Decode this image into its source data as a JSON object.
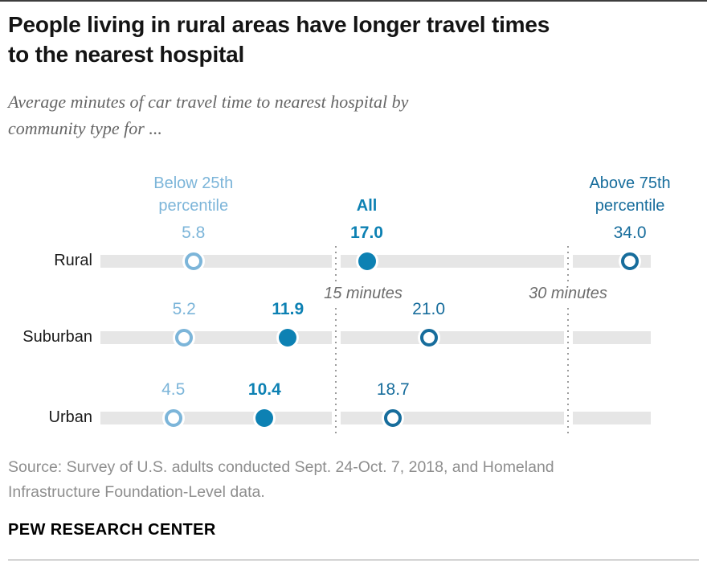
{
  "header": {
    "title": "People living in rural areas have longer travel times\nto the nearest hospital",
    "subtitle": "Average minutes of car travel time to nearest hospital by\ncommunity type for ..."
  },
  "chart_data": {
    "type": "scatter",
    "variant": "dot-plot",
    "title": "People living in rural areas have longer travel times to the nearest hospital",
    "subtitle": "Average minutes of car travel time to nearest hospital by community type for ...",
    "unit": "minutes",
    "categories": [
      "Rural",
      "Suburban",
      "Urban"
    ],
    "series": [
      {
        "name": "Below 25th percentile",
        "marker": "open-circle",
        "color": "#7cb5d9",
        "emphasis": false,
        "values": [
          5.8,
          5.2,
          4.5
        ],
        "labels": [
          "5.8",
          "5.2",
          "4.5"
        ]
      },
      {
        "name": "All",
        "marker": "filled-circle",
        "color": "#0d81b3",
        "emphasis": true,
        "values": [
          17.0,
          11.9,
          10.4
        ],
        "labels": [
          "17.0",
          "11.9",
          "10.4"
        ]
      },
      {
        "name": "Above 75th percentile",
        "marker": "open-circle",
        "color": "#176d9c",
        "emphasis": false,
        "values": [
          34.0,
          21.0,
          18.7
        ],
        "labels": [
          "34.0",
          "21.0",
          "18.7"
        ]
      }
    ],
    "axis": {
      "min": 0,
      "max": 35.5,
      "grid": "reference-lines-only",
      "reference_lines": [
        {
          "value": 15,
          "label": "15 minutes"
        },
        {
          "value": 30,
          "label": "30 minutes"
        }
      ]
    },
    "legend_position": "top-inline-over-first-row",
    "track_color": "#e6e6e6"
  },
  "footer": {
    "source": "Source: Survey of U.S. adults conducted Sept. 24-Oct. 7, 2018, and Homeland\nInfrastructure Foundation-Level data.",
    "brand": "PEW RESEARCH CENTER"
  }
}
